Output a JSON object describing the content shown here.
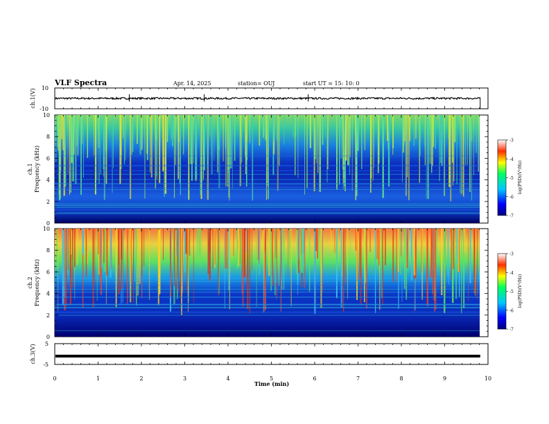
{
  "header": {
    "title": "VLF Spectra",
    "date": "Apr. 14, 2025",
    "station": "station= OUJ",
    "start": "start  UT  =   15: 10: 0"
  },
  "chart_data": [
    {
      "type": "line",
      "name": "waveform-ch1",
      "ylabel": "ch.1(V)",
      "ylim": [
        -10,
        10
      ],
      "y_tick_labels": [
        "10",
        "-10"
      ],
      "baseline": 0,
      "xlim": [
        0,
        10
      ],
      "x_end": 9.82
    },
    {
      "type": "heatmap",
      "name": "spectrogram-ch1",
      "ylabel": "ch.1 Frequency (kHz)",
      "ylim": [
        0,
        10
      ],
      "y_ticks": [
        0,
        2,
        4,
        6,
        8,
        10
      ],
      "xlim": [
        0,
        10
      ],
      "x_end": 9.82,
      "colorbar": {
        "label": "log(PSD)(V²/Hz)",
        "ticks": [
          -3,
          -4,
          -5,
          -6,
          -7
        ]
      }
    },
    {
      "type": "heatmap",
      "name": "spectrogram-ch2",
      "ylabel": "ch.2 Frequency (kHz)",
      "ylim": [
        0,
        10
      ],
      "y_ticks": [
        0,
        2,
        4,
        6,
        8,
        10
      ],
      "xlim": [
        0,
        10
      ],
      "x_end": 9.82,
      "colorbar": {
        "label": "log(PSD)(V²/Hz)",
        "ticks": [
          -3,
          -4,
          -5,
          -6,
          -7
        ]
      }
    },
    {
      "type": "line",
      "name": "waveform-ch3",
      "ylabel": "ch.3(V)",
      "ylim": [
        -5,
        5
      ],
      "y_tick_labels": [
        "5",
        "-5"
      ],
      "baseline": -1,
      "xlim": [
        0,
        10
      ],
      "x_end": 9.82
    }
  ],
  "x_axis": {
    "label": "Time  (min)",
    "ticks": [
      "0",
      "1",
      "2",
      "3",
      "4",
      "5",
      "6",
      "7",
      "8",
      "9",
      "10"
    ]
  },
  "colors": {
    "line": "#000000",
    "frame": "#000000"
  }
}
